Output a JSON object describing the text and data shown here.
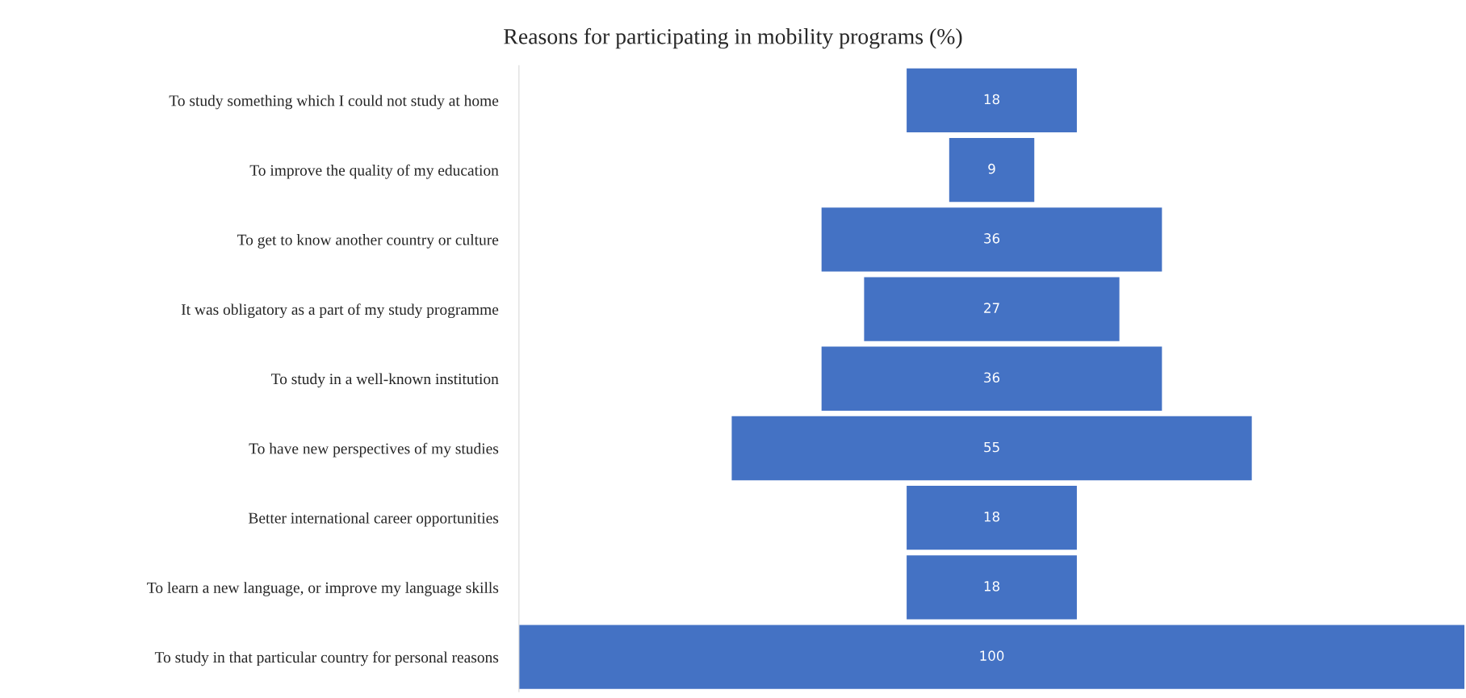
{
  "chart_data": {
    "type": "other",
    "title": "Reasons for participating in mobility programs (%)",
    "categories": [
      "To study something which I could not study at home",
      "To improve the quality of my education",
      "To get to know another country or culture",
      "It was obligatory as a part of my study programme",
      "To study in a well-known institution",
      "To have new perspectives of my studies",
      "Better international career opportunities",
      "To learn a new language, or improve my language skills",
      "To study in that particular country for personal reasons"
    ],
    "values": [
      18,
      9,
      36,
      27,
      36,
      55,
      18,
      18,
      100
    ],
    "color": "#4472c4",
    "data_labels": true
  }
}
